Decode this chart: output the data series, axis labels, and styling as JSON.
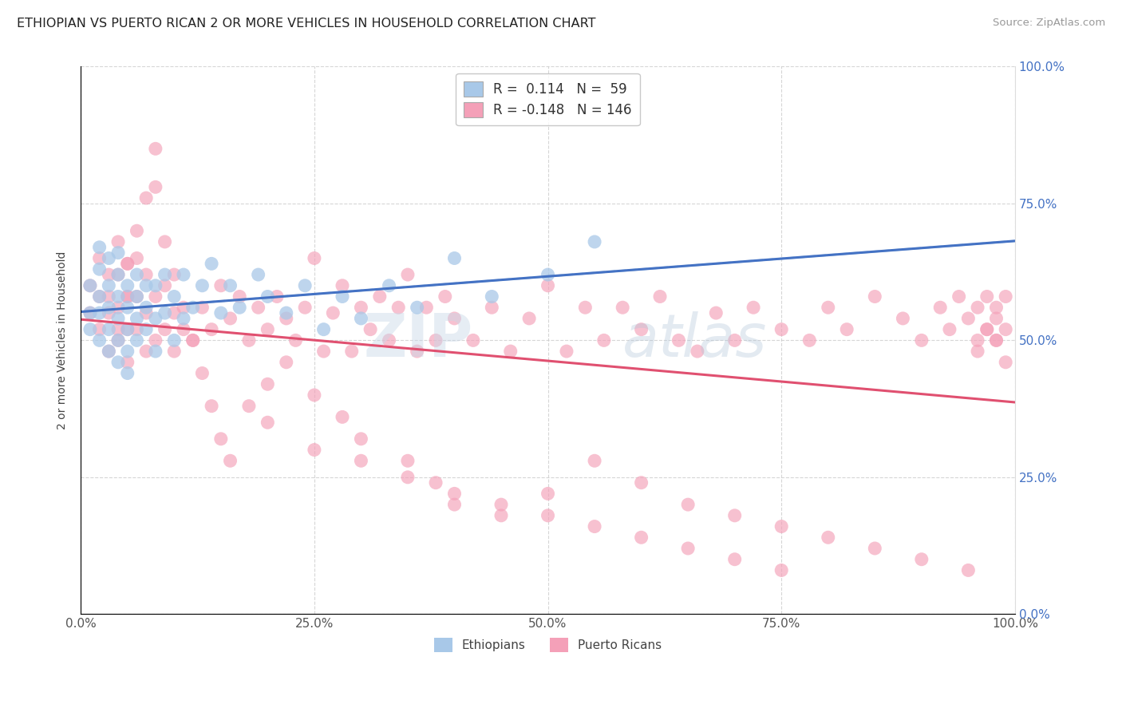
{
  "title": "ETHIOPIAN VS PUERTO RICAN 2 OR MORE VEHICLES IN HOUSEHOLD CORRELATION CHART",
  "source": "Source: ZipAtlas.com",
  "ylabel": "2 or more Vehicles in Household",
  "xlim": [
    0.0,
    1.0
  ],
  "ylim": [
    0.0,
    1.0
  ],
  "xticks": [
    0.0,
    0.25,
    0.5,
    0.75,
    1.0
  ],
  "yticks": [
    0.0,
    0.25,
    0.5,
    0.75,
    1.0
  ],
  "xticklabels": [
    "0.0%",
    "25.0%",
    "50.0%",
    "75.0%",
    "100.0%"
  ],
  "yticklabels": [
    "0.0%",
    "25.0%",
    "50.0%",
    "75.0%",
    "100.0%"
  ],
  "legend1_label": "R =  0.114   N =  59",
  "legend2_label": "R = -0.148   N = 146",
  "color_ethiopian": "#a8c8e8",
  "color_puerto_rican": "#f4a0b8",
  "line_color_ethiopian": "#4472c4",
  "line_color_puerto_rican": "#e05070",
  "line_color_dashed": "#90c0e0",
  "right_tick_color": "#4472c4",
  "ethiopian_x": [
    0.01,
    0.01,
    0.01,
    0.02,
    0.02,
    0.02,
    0.02,
    0.02,
    0.03,
    0.03,
    0.03,
    0.03,
    0.03,
    0.04,
    0.04,
    0.04,
    0.04,
    0.04,
    0.04,
    0.05,
    0.05,
    0.05,
    0.05,
    0.05,
    0.06,
    0.06,
    0.06,
    0.06,
    0.07,
    0.07,
    0.07,
    0.08,
    0.08,
    0.08,
    0.09,
    0.09,
    0.1,
    0.1,
    0.11,
    0.11,
    0.12,
    0.13,
    0.14,
    0.15,
    0.16,
    0.17,
    0.19,
    0.2,
    0.22,
    0.24,
    0.26,
    0.28,
    0.3,
    0.33,
    0.36,
    0.4,
    0.44,
    0.5,
    0.55
  ],
  "ethiopian_y": [
    0.52,
    0.55,
    0.6,
    0.5,
    0.55,
    0.58,
    0.63,
    0.67,
    0.48,
    0.52,
    0.56,
    0.6,
    0.65,
    0.46,
    0.5,
    0.54,
    0.58,
    0.62,
    0.66,
    0.44,
    0.48,
    0.52,
    0.56,
    0.6,
    0.5,
    0.54,
    0.58,
    0.62,
    0.52,
    0.56,
    0.6,
    0.48,
    0.54,
    0.6,
    0.55,
    0.62,
    0.5,
    0.58,
    0.54,
    0.62,
    0.56,
    0.6,
    0.64,
    0.55,
    0.6,
    0.56,
    0.62,
    0.58,
    0.55,
    0.6,
    0.52,
    0.58,
    0.54,
    0.6,
    0.56,
    0.65,
    0.58,
    0.62,
    0.68
  ],
  "puerto_rican_x": [
    0.01,
    0.01,
    0.02,
    0.02,
    0.02,
    0.03,
    0.03,
    0.03,
    0.04,
    0.04,
    0.04,
    0.04,
    0.05,
    0.05,
    0.05,
    0.05,
    0.06,
    0.06,
    0.06,
    0.07,
    0.07,
    0.07,
    0.08,
    0.08,
    0.09,
    0.09,
    0.1,
    0.1,
    0.11,
    0.12,
    0.13,
    0.14,
    0.15,
    0.16,
    0.17,
    0.18,
    0.19,
    0.2,
    0.21,
    0.22,
    0.23,
    0.24,
    0.25,
    0.26,
    0.27,
    0.28,
    0.29,
    0.3,
    0.31,
    0.32,
    0.33,
    0.34,
    0.35,
    0.36,
    0.37,
    0.38,
    0.39,
    0.4,
    0.42,
    0.44,
    0.46,
    0.48,
    0.5,
    0.52,
    0.54,
    0.56,
    0.58,
    0.6,
    0.62,
    0.64,
    0.66,
    0.68,
    0.7,
    0.72,
    0.75,
    0.78,
    0.8,
    0.82,
    0.85,
    0.88,
    0.9,
    0.92,
    0.93,
    0.94,
    0.95,
    0.96,
    0.96,
    0.97,
    0.97,
    0.98,
    0.98,
    0.98,
    0.99,
    0.99,
    0.03,
    0.04,
    0.05,
    0.05,
    0.06,
    0.07,
    0.08,
    0.08,
    0.09,
    0.1,
    0.11,
    0.12,
    0.13,
    0.14,
    0.15,
    0.16,
    0.18,
    0.2,
    0.22,
    0.25,
    0.28,
    0.3,
    0.35,
    0.38,
    0.4,
    0.45,
    0.5,
    0.55,
    0.6,
    0.65,
    0.7,
    0.75,
    0.8,
    0.85,
    0.9,
    0.95,
    0.96,
    0.97,
    0.98,
    0.99,
    0.2,
    0.25,
    0.3,
    0.35,
    0.4,
    0.45,
    0.5,
    0.55,
    0.6,
    0.65,
    0.7,
    0.75
  ],
  "puerto_rican_y": [
    0.55,
    0.6,
    0.52,
    0.58,
    0.65,
    0.48,
    0.55,
    0.62,
    0.5,
    0.56,
    0.62,
    0.68,
    0.46,
    0.52,
    0.58,
    0.64,
    0.52,
    0.58,
    0.65,
    0.48,
    0.55,
    0.62,
    0.5,
    0.58,
    0.52,
    0.6,
    0.48,
    0.55,
    0.52,
    0.5,
    0.56,
    0.52,
    0.6,
    0.54,
    0.58,
    0.5,
    0.56,
    0.52,
    0.58,
    0.54,
    0.5,
    0.56,
    0.65,
    0.48,
    0.55,
    0.6,
    0.48,
    0.56,
    0.52,
    0.58,
    0.5,
    0.56,
    0.62,
    0.48,
    0.56,
    0.5,
    0.58,
    0.54,
    0.5,
    0.56,
    0.48,
    0.54,
    0.6,
    0.48,
    0.56,
    0.5,
    0.56,
    0.52,
    0.58,
    0.5,
    0.48,
    0.55,
    0.5,
    0.56,
    0.52,
    0.5,
    0.56,
    0.52,
    0.58,
    0.54,
    0.5,
    0.56,
    0.52,
    0.58,
    0.54,
    0.5,
    0.56,
    0.52,
    0.58,
    0.54,
    0.5,
    0.56,
    0.52,
    0.58,
    0.58,
    0.52,
    0.58,
    0.64,
    0.7,
    0.76,
    0.85,
    0.78,
    0.68,
    0.62,
    0.56,
    0.5,
    0.44,
    0.38,
    0.32,
    0.28,
    0.38,
    0.42,
    0.46,
    0.4,
    0.36,
    0.32,
    0.28,
    0.24,
    0.2,
    0.18,
    0.22,
    0.28,
    0.24,
    0.2,
    0.18,
    0.16,
    0.14,
    0.12,
    0.1,
    0.08,
    0.48,
    0.52,
    0.5,
    0.46,
    0.35,
    0.3,
    0.28,
    0.25,
    0.22,
    0.2,
    0.18,
    0.16,
    0.14,
    0.12,
    0.1,
    0.08
  ]
}
